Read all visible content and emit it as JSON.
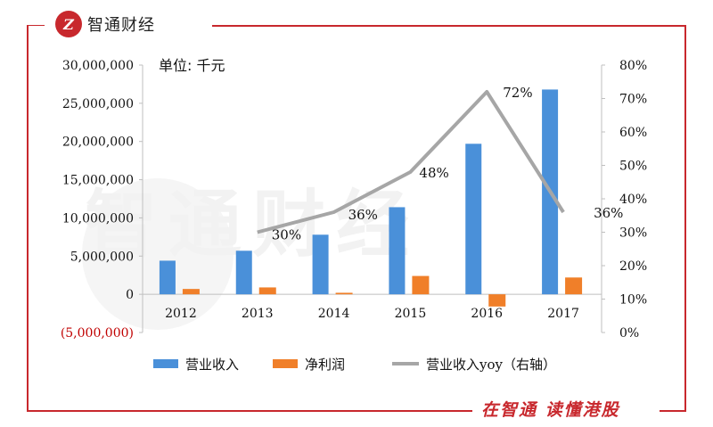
{
  "brand": {
    "name": "智通财经",
    "logo_glyph": "Z"
  },
  "slogan": "在智通  读懂港股",
  "watermark": "智通财经",
  "colors": {
    "accent": "#c8282d",
    "revenue": "#4a90d9",
    "profit": "#f07f29",
    "yoy": "#a6a6a6",
    "negative_tick": "#c00000"
  },
  "chart_data": {
    "type": "bar",
    "unit_label": "单位: 千元",
    "categories": [
      "2012",
      "2013",
      "2014",
      "2015",
      "2016",
      "2017"
    ],
    "series": [
      {
        "name": "营业收入",
        "type": "bar",
        "axis": "left",
        "values": [
          4400000,
          5700000,
          7800000,
          11400000,
          19700000,
          26800000
        ]
      },
      {
        "name": "净利润",
        "type": "bar",
        "axis": "left",
        "values": [
          700000,
          900000,
          200000,
          2400000,
          -1600000,
          2200000
        ]
      },
      {
        "name": "营业收入yoy（右轴）",
        "type": "line",
        "axis": "right",
        "values": [
          null,
          30,
          36,
          48,
          72,
          36
        ],
        "data_labels": [
          "",
          "30%",
          "36%",
          "48%",
          "72%",
          "36%"
        ]
      }
    ],
    "left_axis": {
      "min": -5000000,
      "max": 30000000,
      "tick_labels": [
        "30,000,000",
        "25,000,000",
        "20,000,000",
        "15,000,000",
        "10,000,000",
        "5,000,000",
        "0",
        "(5,000,000)"
      ]
    },
    "right_axis": {
      "min": 0,
      "max": 80,
      "tick_labels": [
        "80%",
        "70%",
        "60%",
        "50%",
        "40%",
        "30%",
        "20%",
        "10%",
        "0%"
      ]
    },
    "legend": [
      "营业收入",
      "净利润",
      "营业收入yoy（右轴）"
    ],
    "legend_position": "bottom",
    "grid": false
  }
}
